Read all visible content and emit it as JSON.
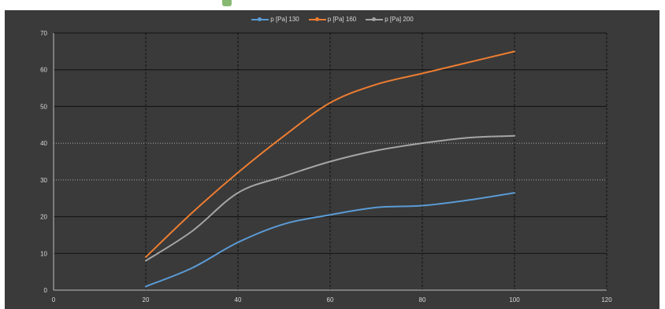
{
  "chart_data": {
    "type": "line",
    "title": "",
    "xlabel": "",
    "ylabel": "",
    "xlim": [
      0,
      120
    ],
    "ylim": [
      0,
      70
    ],
    "x_ticks": [
      0,
      20,
      40,
      60,
      80,
      100,
      120
    ],
    "y_ticks": [
      0,
      10,
      20,
      30,
      40,
      50,
      60,
      70
    ],
    "grid": true,
    "legend_position": "top-center",
    "background": "#3a3a3a",
    "series": [
      {
        "name": "p [Pa] 130",
        "color": "#5b9bd5",
        "x": [
          20,
          30,
          40,
          50,
          60,
          70,
          80,
          90,
          100
        ],
        "y": [
          1,
          6,
          13,
          18,
          20.5,
          22.5,
          23,
          24.5,
          26.5
        ]
      },
      {
        "name": "p [Pa] 160",
        "color": "#ed7d31",
        "x": [
          20,
          30,
          40,
          50,
          60,
          70,
          80,
          90,
          100
        ],
        "y": [
          9,
          21,
          32,
          42,
          51,
          56,
          59,
          62,
          65
        ]
      },
      {
        "name": "p [Pa] 200",
        "color": "#a5a5a5",
        "x": [
          20,
          30,
          40,
          50,
          60,
          70,
          80,
          90,
          100
        ],
        "y": [
          8,
          16,
          26.5,
          31,
          35,
          38,
          40,
          41.5,
          42
        ]
      }
    ]
  }
}
